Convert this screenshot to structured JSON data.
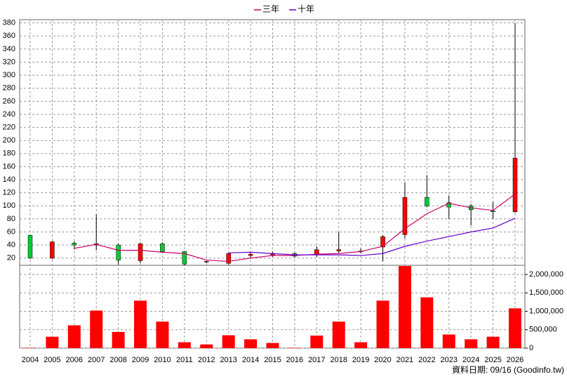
{
  "chart_data": {
    "type": "candlestick",
    "categories": [
      "2004",
      "2005",
      "2006",
      "2007",
      "2008",
      "2009",
      "2010",
      "2011",
      "2012",
      "2013",
      "2014",
      "2015",
      "2016",
      "2017",
      "2018",
      "2019",
      "2020",
      "2021",
      "2022",
      "2023",
      "2024",
      "2025",
      "2026"
    ],
    "open": [
      55,
      20,
      43,
      40,
      40,
      16,
      42,
      30,
      14,
      12,
      24,
      25,
      27,
      25,
      31,
      30,
      37,
      56,
      113,
      105,
      100,
      92,
      91
    ],
    "high": [
      56,
      46,
      46,
      87,
      42,
      44,
      44,
      31,
      16,
      28,
      30,
      30,
      29,
      38,
      60,
      35,
      55,
      136,
      147,
      116,
      103,
      106,
      380
    ],
    "low": [
      19,
      18,
      33,
      32,
      10,
      12,
      28,
      9,
      12,
      10,
      20,
      22,
      21,
      22,
      28,
      27,
      15,
      50,
      98,
      80,
      70,
      80,
      89
    ],
    "close": [
      20,
      45,
      40,
      42,
      17,
      42,
      30,
      11,
      15,
      27,
      26,
      27,
      23,
      33,
      33,
      31,
      53,
      113,
      100,
      98,
      94,
      91,
      173
    ],
    "up_color": "#ff0000",
    "down_color": "#00cc33",
    "series": [
      {
        "name": "三年",
        "color": "#cc0066",
        "values": [
          null,
          null,
          35,
          41,
          32,
          32,
          29,
          27,
          17,
          15,
          20,
          24,
          24,
          26,
          27,
          30,
          38,
          65,
          88,
          104,
          97,
          93,
          118
        ]
      },
      {
        "name": "十年",
        "color": "#6600cc",
        "values": [
          null,
          null,
          null,
          null,
          null,
          null,
          null,
          null,
          null,
          28,
          29,
          27,
          25,
          25,
          25,
          24,
          27,
          38,
          46,
          53,
          60,
          66,
          81
        ]
      }
    ],
    "ylim": [
      9,
      385
    ],
    "yticks": [
      20,
      40,
      60,
      80,
      100,
      120,
      140,
      160,
      180,
      200,
      220,
      240,
      260,
      280,
      300,
      320,
      340,
      360,
      380
    ],
    "grid": true,
    "legend": "top",
    "volume": {
      "color": "#ff0000",
      "values": [
        10000,
        310000,
        620000,
        1020000,
        440000,
        1290000,
        720000,
        160000,
        100000,
        350000,
        240000,
        140000,
        10000,
        340000,
        720000,
        160000,
        1290000,
        2230000,
        1380000,
        370000,
        240000,
        310000,
        1080000
      ],
      "ylim": [
        0,
        2250000
      ],
      "yticks": [
        0,
        {
          "value": 500000,
          "label": "500,000"
        },
        {
          "value": 1000000,
          "label": "1,000,000"
        },
        {
          "value": 1500000,
          "label": "1,500,000"
        },
        {
          "value": 2000000,
          "label": "2,000,000"
        }
      ]
    },
    "footnote": "資料日期: 09/16 (Goodinfo.tw)"
  }
}
